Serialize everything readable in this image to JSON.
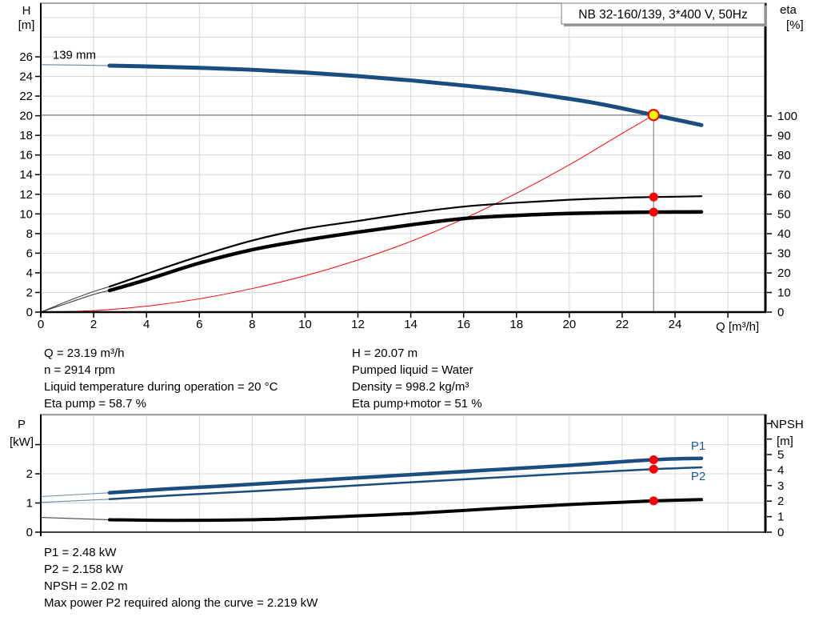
{
  "operating_conditions": {
    "left": [
      "Q = 23.19 m³/h",
      "n = 2914 rpm",
      "Liquid temperature during operation = 20 °C",
      "Eta pump = 58.7 %"
    ],
    "right": [
      "H = 20.07 m",
      "Pumped liquid = Water",
      "Density = 998.2 kg/m³",
      "Eta pump+motor = 51 %"
    ]
  },
  "results": [
    "P1 = 2.48 kW",
    "P2 = 2.158 kW",
    "NPSH = 2.02 m",
    "Max power P2 required along the curve = 2.219 kW"
  ],
  "colors": {
    "curve_blue": "#1B4E7E",
    "thin_blue": "#6E87A0",
    "curve_black": "#000000",
    "thin_black": "#444444",
    "system_red": "#FF0000",
    "marker_red": "#FF0000",
    "duty_yellow": "#FFFF00",
    "grid": "#D8D8D8",
    "guide": "#888888",
    "axis": "#000000",
    "label_blue": "#1F5B94"
  },
  "chart_data": [
    {
      "type": "line",
      "name": "qh-eta-chart",
      "title_box": "NB 32-160/139, 3*400 V, 50Hz",
      "x_axis": {
        "label": "Q [m³/h]",
        "min": 0,
        "max": 27.42,
        "grid_step": 2,
        "ticks": [
          0,
          2,
          4,
          6,
          8,
          10,
          12,
          14,
          16,
          18,
          20,
          22,
          24
        ],
        "minor_ticks": [
          26
        ]
      },
      "y_left": {
        "title_lines": [
          "H",
          "[m]"
        ],
        "min": 0,
        "max": 31.46,
        "grid_step": 2,
        "ticks": [
          0,
          2,
          4,
          6,
          8,
          10,
          12,
          14,
          16,
          18,
          20,
          22,
          24,
          26
        ],
        "minor_ticks": []
      },
      "y_right": {
        "title_lines": [
          "eta",
          "[%]"
        ],
        "min": 0,
        "max": 157.55,
        "ticks": [
          0,
          10,
          20,
          30,
          40,
          50,
          60,
          70,
          80,
          90,
          100
        ],
        "minor_ticks": []
      },
      "duty_point": {
        "q": 23.19,
        "h": 20.07
      },
      "series": [
        {
          "name": "system-curve",
          "axis": "left",
          "color": "#FF0000",
          "width": 1,
          "points": [
            [
              0,
              0
            ],
            [
              2,
              0.15
            ],
            [
              4,
              0.6
            ],
            [
              6,
              1.35
            ],
            [
              8,
              2.4
            ],
            [
              10,
              3.7
            ],
            [
              12,
              5.3
            ],
            [
              14,
              7.2
            ],
            [
              16,
              9.5
            ],
            [
              18,
              12.1
            ],
            [
              20,
              15.0
            ],
            [
              22,
              18.2
            ],
            [
              23.19,
              20.07
            ]
          ]
        },
        {
          "name": "head-curve-139mm",
          "axis": "left",
          "color": "#1B4E7E",
          "thin_color": "#6E87A0",
          "width": 5,
          "thin_until": 2.6,
          "points": [
            [
              0,
              25.2
            ],
            [
              1,
              25.17
            ],
            [
              2,
              25.13
            ],
            [
              2.6,
              25.1
            ],
            [
              4,
              25.02
            ],
            [
              6,
              24.88
            ],
            [
              8,
              24.68
            ],
            [
              10,
              24.4
            ],
            [
              12,
              24.03
            ],
            [
              14,
              23.6
            ],
            [
              16,
              23.08
            ],
            [
              18,
              22.5
            ],
            [
              20,
              21.72
            ],
            [
              21,
              21.28
            ],
            [
              22,
              20.75
            ],
            [
              23.19,
              20.07
            ],
            [
              24,
              19.62
            ],
            [
              25,
              19.05
            ]
          ]
        },
        {
          "name": "eta-pump-curve",
          "axis": "right",
          "color": "#000000",
          "thin_color": "#444444",
          "width": 2.2,
          "thin_until": 2.6,
          "points": [
            [
              0,
              0
            ],
            [
              1,
              5.5
            ],
            [
              2,
              10.5
            ],
            [
              2.6,
              13
            ],
            [
              4,
              19.5
            ],
            [
              6,
              28.5
            ],
            [
              8,
              36.5
            ],
            [
              10,
              42.5
            ],
            [
              12,
              46.5
            ],
            [
              14,
              50.5
            ],
            [
              16,
              53.8
            ],
            [
              18,
              55.8
            ],
            [
              20,
              57.3
            ],
            [
              22,
              58.3
            ],
            [
              23.19,
              58.7
            ],
            [
              24,
              58.85
            ],
            [
              25,
              59.1
            ]
          ]
        },
        {
          "name": "eta-pump-motor-curve",
          "axis": "right",
          "color": "#000000",
          "thin_color": "#444444",
          "width": 4.5,
          "thin_until": 2.6,
          "points": [
            [
              0,
              0
            ],
            [
              1,
              4.5
            ],
            [
              2,
              9
            ],
            [
              2.6,
              11
            ],
            [
              4,
              16.5
            ],
            [
              6,
              25
            ],
            [
              8,
              31.8
            ],
            [
              10,
              36.7
            ],
            [
              12,
              40.8
            ],
            [
              14,
              44.5
            ],
            [
              16,
              47.7
            ],
            [
              18,
              49.3
            ],
            [
              20,
              50.3
            ],
            [
              22,
              50.8
            ],
            [
              23.19,
              51
            ],
            [
              24,
              51.05
            ],
            [
              25,
              51.1
            ]
          ]
        }
      ],
      "markers": [
        {
          "series": "eta-pump-curve",
          "axis": "right",
          "q": 23.19,
          "v": 58.7,
          "style": "red-dot"
        },
        {
          "series": "eta-pump-motor-curve",
          "axis": "right",
          "q": 23.19,
          "v": 51,
          "style": "red-dot"
        }
      ],
      "labels": [
        {
          "text": "139 mm",
          "q": 0.45,
          "v": 25.8,
          "axis": "left",
          "color": "#000000",
          "anchor": "start"
        }
      ]
    },
    {
      "type": "line",
      "name": "power-npsh-chart",
      "x_axis": {
        "label": "",
        "min": 0,
        "max": 27.42,
        "grid_step": 2,
        "ticks": [],
        "minor_ticks": []
      },
      "y_left": {
        "title_lines": [
          "P",
          "[kW]"
        ],
        "min": 0,
        "max": 4.03,
        "grid_step": 1,
        "ticks": [
          0,
          1,
          2
        ],
        "minor_ticks": [
          3
        ]
      },
      "y_right": {
        "title_lines": [
          "NPSH",
          "[m]"
        ],
        "min": 0,
        "max": 7.58,
        "ticks": [
          0,
          1,
          2,
          3,
          4,
          5
        ],
        "minor_ticks": [
          6,
          7
        ]
      },
      "series": [
        {
          "name": "p1-curve",
          "axis": "left",
          "color": "#1B4E7E",
          "thin_color": "#6E87A0",
          "width": 4.5,
          "thin_until": 2.6,
          "points": [
            [
              0,
              1.22
            ],
            [
              2.6,
              1.35
            ],
            [
              5,
              1.49
            ],
            [
              8,
              1.64
            ],
            [
              11,
              1.81
            ],
            [
              14,
              1.97
            ],
            [
              17,
              2.13
            ],
            [
              20,
              2.29
            ],
            [
              23.19,
              2.48
            ],
            [
              25,
              2.53
            ]
          ]
        },
        {
          "name": "p2-curve",
          "axis": "left",
          "color": "#1B4E7E",
          "thin_color": "#6E87A0",
          "width": 2.5,
          "thin_until": 2.6,
          "points": [
            [
              0,
              1.02
            ],
            [
              2.6,
              1.13
            ],
            [
              5,
              1.26
            ],
            [
              8,
              1.4
            ],
            [
              11,
              1.55
            ],
            [
              14,
              1.71
            ],
            [
              17,
              1.86
            ],
            [
              20,
              2.01
            ],
            [
              23.19,
              2.158
            ],
            [
              25,
              2.219
            ]
          ]
        },
        {
          "name": "npsh-curve",
          "axis": "right",
          "color": "#000000",
          "thin_color": "#444444",
          "width": 4,
          "thin_until": 2.6,
          "points": [
            [
              0,
              0.95
            ],
            [
              2.6,
              0.8
            ],
            [
              5,
              0.76
            ],
            [
              8,
              0.8
            ],
            [
              10,
              0.9
            ],
            [
              12,
              1.05
            ],
            [
              14,
              1.2
            ],
            [
              16,
              1.4
            ],
            [
              18,
              1.6
            ],
            [
              20,
              1.78
            ],
            [
              22,
              1.93
            ],
            [
              23.19,
              2.02
            ],
            [
              25,
              2.1
            ]
          ]
        }
      ],
      "markers": [
        {
          "series": "p1-curve",
          "axis": "left",
          "q": 23.19,
          "v": 2.48,
          "style": "red-dot"
        },
        {
          "series": "p2-curve",
          "axis": "left",
          "q": 23.19,
          "v": 2.158,
          "style": "red-dot"
        },
        {
          "series": "npsh-curve",
          "axis": "right",
          "q": 23.19,
          "v": 2.02,
          "style": "red-dot"
        }
      ],
      "labels": [
        {
          "text": "P1",
          "q": 24.6,
          "v": 2.82,
          "axis": "left",
          "color": "#1F5B94",
          "anchor": "start"
        },
        {
          "text": "P2",
          "q": 24.6,
          "v": 1.78,
          "axis": "left",
          "color": "#1F5B94",
          "anchor": "start"
        }
      ]
    }
  ]
}
